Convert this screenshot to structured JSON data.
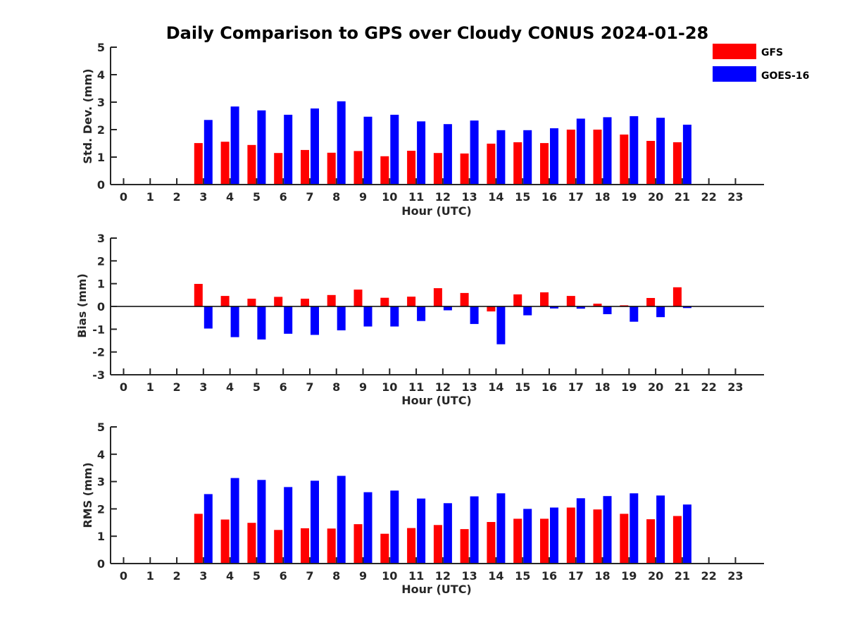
{
  "title": "Daily Comparison to GPS over Cloudy CONUS 2024-01-28",
  "colors": {
    "GFS": "#ff0000",
    "GOES-16": "#0000ff",
    "axis": "#262626"
  },
  "legend": [
    {
      "name": "GFS",
      "color": "#ff0000"
    },
    {
      "name": "GOES-16",
      "color": "#0000ff"
    }
  ],
  "chart_data": [
    {
      "type": "bar",
      "xlabel": "Hour (UTC)",
      "ylabel": "Std. Dev. (mm)",
      "ylim": [
        0,
        5
      ],
      "yticks": [
        0,
        1,
        2,
        3,
        4,
        5
      ],
      "categories": [
        "0",
        "1",
        "2",
        "3",
        "4",
        "5",
        "6",
        "7",
        "8",
        "9",
        "10",
        "11",
        "12",
        "13",
        "14",
        "15",
        "16",
        "17",
        "18",
        "19",
        "20",
        "21",
        "22",
        "23"
      ],
      "series": [
        {
          "name": "GFS",
          "values": [
            null,
            null,
            null,
            1.51,
            1.56,
            1.44,
            1.15,
            1.26,
            1.16,
            1.22,
            1.03,
            1.23,
            1.15,
            1.13,
            1.49,
            1.54,
            1.51,
            2.0,
            2.0,
            1.82,
            1.59,
            1.54,
            null,
            null
          ]
        },
        {
          "name": "GOES-16",
          "values": [
            null,
            null,
            null,
            2.35,
            2.84,
            2.7,
            2.54,
            2.77,
            3.03,
            2.47,
            2.54,
            2.3,
            2.2,
            2.33,
            1.98,
            1.98,
            2.05,
            2.4,
            2.45,
            2.49,
            2.43,
            2.18,
            null,
            null
          ]
        }
      ],
      "legend": "top-right",
      "grid": false
    },
    {
      "type": "bar",
      "xlabel": "Hour (UTC)",
      "ylabel": "Bias (mm)",
      "ylim": [
        -3,
        3
      ],
      "yticks": [
        -3,
        -2,
        -1,
        0,
        1,
        2,
        3
      ],
      "categories": [
        "0",
        "1",
        "2",
        "3",
        "4",
        "5",
        "6",
        "7",
        "8",
        "9",
        "10",
        "11",
        "12",
        "13",
        "14",
        "15",
        "16",
        "17",
        "18",
        "19",
        "20",
        "21",
        "22",
        "23"
      ],
      "series": [
        {
          "name": "GFS",
          "values": [
            null,
            null,
            null,
            0.99,
            0.46,
            0.34,
            0.42,
            0.34,
            0.5,
            0.74,
            0.38,
            0.43,
            0.8,
            0.59,
            -0.22,
            0.53,
            0.62,
            0.46,
            0.12,
            0.05,
            0.37,
            0.84,
            null,
            null
          ]
        },
        {
          "name": "GOES-16",
          "values": [
            null,
            null,
            null,
            -0.97,
            -1.35,
            -1.45,
            -1.2,
            -1.25,
            -1.05,
            -0.88,
            -0.88,
            -0.64,
            -0.17,
            -0.77,
            -1.66,
            -0.39,
            -0.09,
            -0.1,
            -0.34,
            -0.67,
            -0.47,
            -0.07,
            null,
            null
          ]
        }
      ],
      "zero_line": true,
      "grid": false
    },
    {
      "type": "bar",
      "xlabel": "Hour (UTC)",
      "ylabel": "RMS (mm)",
      "ylim": [
        0,
        5
      ],
      "yticks": [
        0,
        1,
        2,
        3,
        4,
        5
      ],
      "categories": [
        "0",
        "1",
        "2",
        "3",
        "4",
        "5",
        "6",
        "7",
        "8",
        "9",
        "10",
        "11",
        "12",
        "13",
        "14",
        "15",
        "16",
        "17",
        "18",
        "19",
        "20",
        "21",
        "22",
        "23"
      ],
      "series": [
        {
          "name": "GFS",
          "values": [
            null,
            null,
            null,
            1.82,
            1.61,
            1.49,
            1.23,
            1.29,
            1.28,
            1.44,
            1.09,
            1.3,
            1.41,
            1.26,
            1.52,
            1.64,
            1.64,
            2.05,
            1.98,
            1.82,
            1.62,
            1.74,
            null,
            null
          ]
        },
        {
          "name": "GOES-16",
          "values": [
            null,
            null,
            null,
            2.54,
            3.13,
            3.06,
            2.8,
            3.03,
            3.21,
            2.61,
            2.67,
            2.38,
            2.21,
            2.46,
            2.57,
            2.0,
            2.05,
            2.39,
            2.47,
            2.57,
            2.49,
            2.16,
            null,
            null
          ]
        }
      ],
      "grid": false
    }
  ]
}
